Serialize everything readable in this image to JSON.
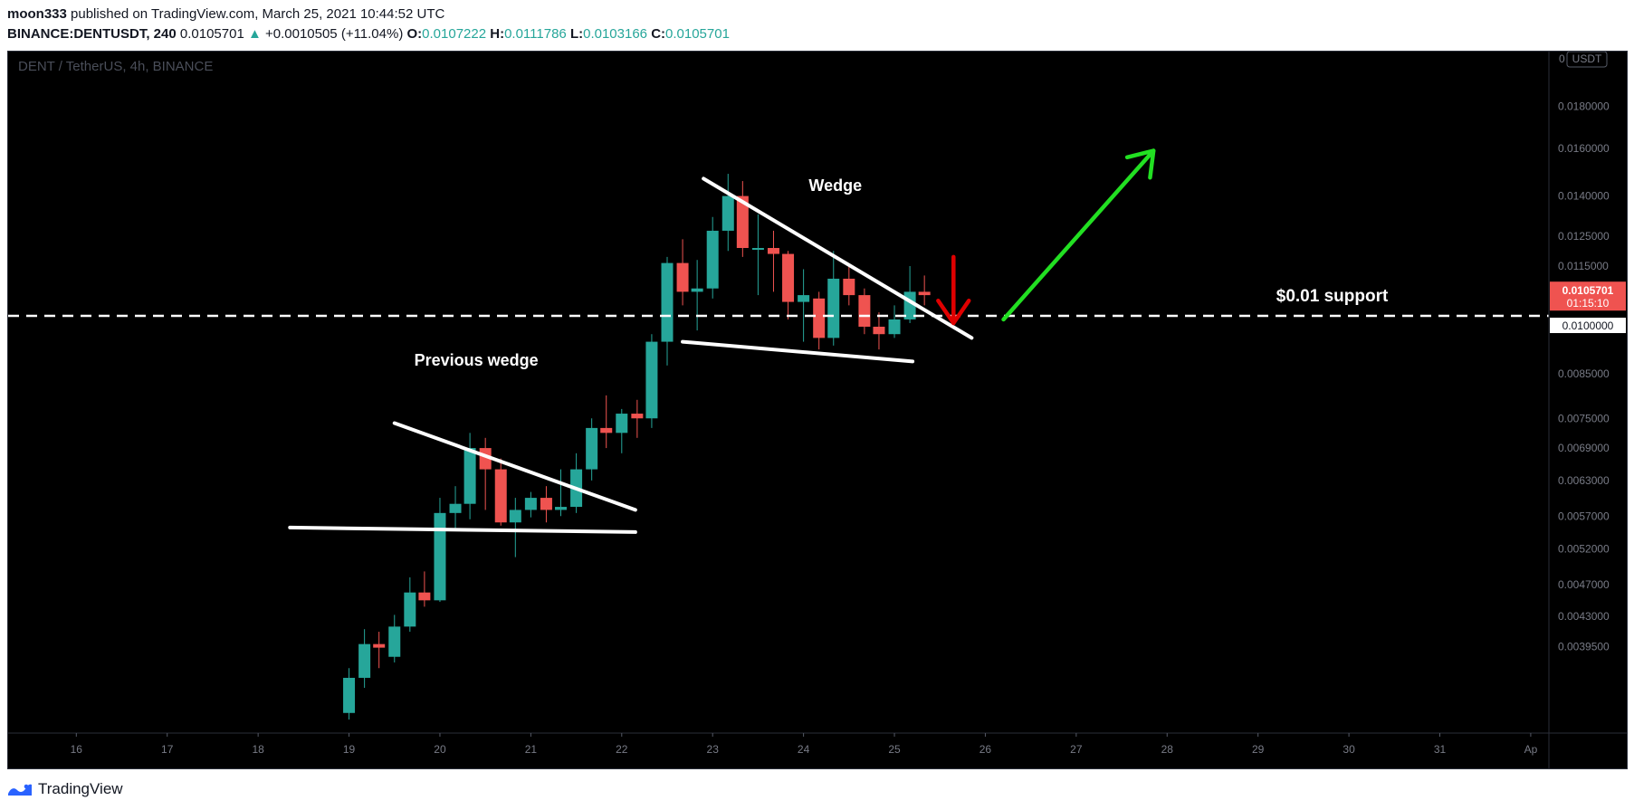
{
  "header": {
    "author": "moon333",
    "published": "published on TradingView.com, March 25, 2021 10:44:52 UTC",
    "symbol": "BINANCE:DENTUSDT, 240",
    "last": "0.0105701",
    "change_arrow": "▲",
    "change": "+0.0010505 (+11.04%)",
    "o_label": "O:",
    "o_value": "0.0107222",
    "h_label": "H:",
    "h_value": "0.0111786",
    "l_label": "L:",
    "l_value": "0.0103166",
    "c_label": "C:",
    "c_value": "0.0105701"
  },
  "footer": {
    "brand": "TradingView",
    "logo_icon": "tradingview-logo-icon"
  },
  "colors": {
    "up": "#26a69a",
    "down": "#ef5350",
    "background": "#000000",
    "price_tag": "#ef5350"
  },
  "chart_data": {
    "type": "candlestick",
    "title": "DENT / TetherUS, 4h, BINANCE",
    "currency": "USDT",
    "y_scale": "log",
    "ylim": [
      0.0031,
      0.021
    ],
    "x_ticks": [
      "16",
      "17",
      "18",
      "19",
      "20",
      "21",
      "22",
      "23",
      "24",
      "25",
      "26",
      "27",
      "28",
      "29",
      "30",
      "31",
      "Ap"
    ],
    "x_tick_days": [
      16,
      17,
      18,
      19,
      20,
      21,
      22,
      23,
      24,
      25,
      26,
      27,
      28,
      29,
      30,
      31,
      32
    ],
    "xlim": [
      15.25,
      32.2
    ],
    "y_ticks": [
      {
        "label": "0.0180000",
        "value": 0.018
      },
      {
        "label": "0.0160000",
        "value": 0.016
      },
      {
        "label": "0.0140000",
        "value": 0.014
      },
      {
        "label": "0.0125000",
        "value": 0.0125
      },
      {
        "label": "0.0115000",
        "value": 0.0115
      },
      {
        "label": "0.0085000",
        "value": 0.0085
      },
      {
        "label": "0.0075000",
        "value": 0.0075
      },
      {
        "label": "0.0069000",
        "value": 0.0069
      },
      {
        "label": "0.0063000",
        "value": 0.0063
      },
      {
        "label": "0.0057000",
        "value": 0.0057
      },
      {
        "label": "0.0052000",
        "value": 0.0052
      },
      {
        "label": "0.0047000",
        "value": 0.0047
      },
      {
        "label": "0.0043000",
        "value": 0.0043
      },
      {
        "label": "0.0039500",
        "value": 0.00395
      }
    ],
    "candles": [
      {
        "t": 19.0,
        "o": 0.00328,
        "h": 0.00372,
        "l": 0.00322,
        "c": 0.00362
      },
      {
        "t": 19.17,
        "o": 0.00362,
        "h": 0.00415,
        "l": 0.00352,
        "c": 0.00398
      },
      {
        "t": 19.33,
        "o": 0.00398,
        "h": 0.00412,
        "l": 0.00372,
        "c": 0.00394
      },
      {
        "t": 19.5,
        "o": 0.00384,
        "h": 0.00432,
        "l": 0.00378,
        "c": 0.00418
      },
      {
        "t": 19.67,
        "o": 0.00418,
        "h": 0.0048,
        "l": 0.00412,
        "c": 0.0046
      },
      {
        "t": 19.83,
        "o": 0.0046,
        "h": 0.00488,
        "l": 0.00442,
        "c": 0.0045
      },
      {
        "t": 20.0,
        "o": 0.0045,
        "h": 0.006,
        "l": 0.00448,
        "c": 0.00575
      },
      {
        "t": 20.17,
        "o": 0.00575,
        "h": 0.0062,
        "l": 0.00548,
        "c": 0.0059
      },
      {
        "t": 20.33,
        "o": 0.0059,
        "h": 0.0072,
        "l": 0.00565,
        "c": 0.0069
      },
      {
        "t": 20.5,
        "o": 0.0069,
        "h": 0.0071,
        "l": 0.0058,
        "c": 0.0065
      },
      {
        "t": 20.67,
        "o": 0.0065,
        "h": 0.0067,
        "l": 0.00555,
        "c": 0.0056
      },
      {
        "t": 20.83,
        "o": 0.0056,
        "h": 0.006,
        "l": 0.00508,
        "c": 0.0058
      },
      {
        "t": 21.0,
        "o": 0.0058,
        "h": 0.0061,
        "l": 0.00568,
        "c": 0.006
      },
      {
        "t": 21.17,
        "o": 0.006,
        "h": 0.0062,
        "l": 0.0056,
        "c": 0.0058
      },
      {
        "t": 21.33,
        "o": 0.0058,
        "h": 0.0065,
        "l": 0.0057,
        "c": 0.00585
      },
      {
        "t": 21.5,
        "o": 0.00585,
        "h": 0.0068,
        "l": 0.00575,
        "c": 0.0065
      },
      {
        "t": 21.67,
        "o": 0.0065,
        "h": 0.0075,
        "l": 0.0063,
        "c": 0.0073
      },
      {
        "t": 21.83,
        "o": 0.0073,
        "h": 0.008,
        "l": 0.0069,
        "c": 0.0072
      },
      {
        "t": 22.0,
        "o": 0.0072,
        "h": 0.0077,
        "l": 0.0068,
        "c": 0.0076
      },
      {
        "t": 22.17,
        "o": 0.0076,
        "h": 0.0079,
        "l": 0.0071,
        "c": 0.0075
      },
      {
        "t": 22.33,
        "o": 0.0075,
        "h": 0.0095,
        "l": 0.0073,
        "c": 0.0093
      },
      {
        "t": 22.5,
        "o": 0.0093,
        "h": 0.0118,
        "l": 0.0087,
        "c": 0.0116
      },
      {
        "t": 22.67,
        "o": 0.0116,
        "h": 0.0124,
        "l": 0.0103,
        "c": 0.0107
      },
      {
        "t": 22.83,
        "o": 0.0107,
        "h": 0.0117,
        "l": 0.0096,
        "c": 0.0108
      },
      {
        "t": 23.0,
        "o": 0.0108,
        "h": 0.0132,
        "l": 0.0105,
        "c": 0.0127
      },
      {
        "t": 23.17,
        "o": 0.0127,
        "h": 0.0149,
        "l": 0.012,
        "c": 0.014
      },
      {
        "t": 23.33,
        "o": 0.014,
        "h": 0.0146,
        "l": 0.0118,
        "c": 0.0121
      },
      {
        "t": 23.5,
        "o": 0.0121,
        "h": 0.0133,
        "l": 0.0106,
        "c": 0.0121
      },
      {
        "t": 23.67,
        "o": 0.0121,
        "h": 0.0127,
        "l": 0.0107,
        "c": 0.0119
      },
      {
        "t": 23.83,
        "o": 0.0119,
        "h": 0.012,
        "l": 0.0099,
        "c": 0.0104
      },
      {
        "t": 24.0,
        "o": 0.0104,
        "h": 0.0114,
        "l": 0.0093,
        "c": 0.0106
      },
      {
        "t": 24.17,
        "o": 0.0105,
        "h": 0.0107,
        "l": 0.0091,
        "c": 0.0094
      },
      {
        "t": 24.33,
        "o": 0.0094,
        "h": 0.012,
        "l": 0.0092,
        "c": 0.0111
      },
      {
        "t": 24.5,
        "o": 0.0111,
        "h": 0.0115,
        "l": 0.0103,
        "c": 0.0106
      },
      {
        "t": 24.67,
        "o": 0.0106,
        "h": 0.0108,
        "l": 0.0095,
        "c": 0.0097
      },
      {
        "t": 24.83,
        "o": 0.0097,
        "h": 0.0101,
        "l": 0.0091,
        "c": 0.0095
      },
      {
        "t": 25.0,
        "o": 0.0095,
        "h": 0.0103,
        "l": 0.0094,
        "c": 0.0099
      },
      {
        "t": 25.17,
        "o": 0.0099,
        "h": 0.0115,
        "l": 0.0098,
        "c": 0.0107
      },
      {
        "t": 25.33,
        "o": 0.0107,
        "h": 0.0112,
        "l": 0.0103,
        "c": 0.0106
      }
    ],
    "current_price": {
      "value": 0.0105701,
      "label": "0.0105701",
      "countdown": "01:15:10"
    },
    "support": {
      "value": 0.01,
      "label": "0.0100000",
      "annotation": "$0.01 support"
    },
    "annotations": [
      {
        "text": "Wedge",
        "t": 24.35,
        "v": 0.0142
      },
      {
        "text": "Previous wedge",
        "t": 20.4,
        "v": 0.0087
      }
    ],
    "trendlines": [
      {
        "from": {
          "t": 22.9,
          "v": 0.0147
        },
        "to": {
          "t": 25.85,
          "v": 0.0094
        },
        "color": "#ffffff"
      },
      {
        "from": {
          "t": 22.67,
          "v": 0.0093
        },
        "to": {
          "t": 25.2,
          "v": 0.0088
        },
        "color": "#ffffff"
      },
      {
        "from": {
          "t": 19.5,
          "v": 0.0074
        },
        "to": {
          "t": 22.15,
          "v": 0.0058
        },
        "color": "#ffffff"
      },
      {
        "from": {
          "t": 18.35,
          "v": 0.00552
        },
        "to": {
          "t": 22.15,
          "v": 0.00545
        },
        "color": "#ffffff"
      }
    ],
    "arrows": [
      {
        "from": {
          "t": 26.2,
          "v": 0.0099
        },
        "to": {
          "t": 27.85,
          "v": 0.0159
        },
        "color": "#22e022"
      },
      {
        "from": {
          "t": 25.65,
          "v": 0.0118
        },
        "to": {
          "t": 25.65,
          "v": 0.0098
        },
        "color": "#e00000"
      }
    ]
  }
}
